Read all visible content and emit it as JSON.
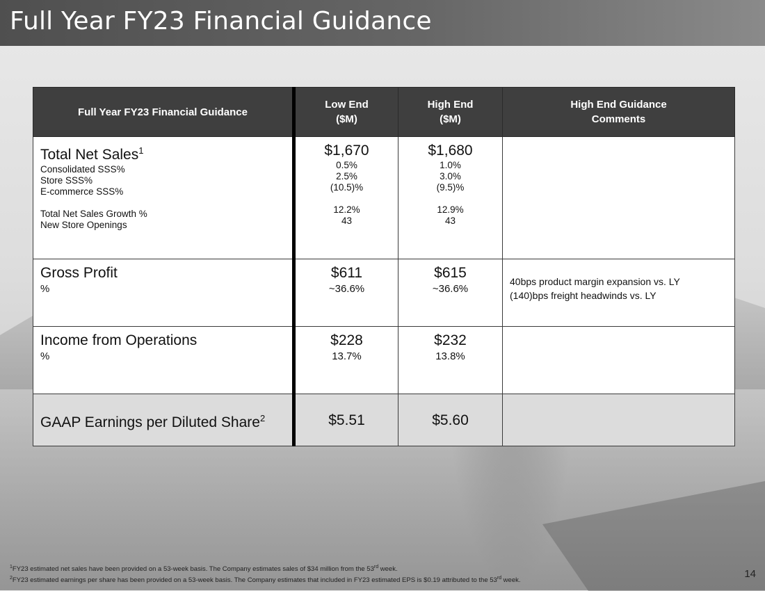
{
  "slide": {
    "title": "Full Year FY23 Financial Guidance",
    "page_number": "14"
  },
  "table": {
    "headers": {
      "label": "Full Year FY23 Financial Guidance",
      "low_line1": "Low End",
      "low_line2": "($M)",
      "high_line1": "High End",
      "high_line2": "($M)",
      "comment_line1": "High End Guidance",
      "comment_line2": "Comments"
    },
    "sales": {
      "title": "Total Net Sales",
      "title_sup": "1",
      "low": "$1,670",
      "high": "$1,680",
      "sub": [
        {
          "label": "Consolidated SSS%",
          "low": "0.5%",
          "high": "1.0%"
        },
        {
          "label": "Store SSS%",
          "low": "2.5%",
          "high": "3.0%"
        },
        {
          "label": "E-commerce SSS%",
          "low": "(10.5)%",
          "high": "(9.5)%"
        },
        {
          "label": "Total Net Sales Growth %",
          "low": "12.2%",
          "high": "12.9%"
        },
        {
          "label": "New Store Openings",
          "low": "43",
          "high": "43"
        }
      ]
    },
    "gross_profit": {
      "title": "Gross Profit",
      "sub_label": "%",
      "low": "$611",
      "high": "$615",
      "low_pct": "~36.6%",
      "high_pct": "~36.6%",
      "comment_line1": "40bps product margin expansion vs. LY",
      "comment_line2": "(140)bps freight headwinds vs. LY"
    },
    "income_ops": {
      "title": "Income from Operations",
      "sub_label": "%",
      "low": "$228",
      "high": "$232",
      "low_pct": "13.7%",
      "high_pct": "13.8%"
    },
    "eps": {
      "title": "GAAP Earnings per Diluted Share",
      "title_sup": "2",
      "low": "$5.51",
      "high": "$5.60"
    }
  },
  "footnotes": {
    "f1_mark": "1",
    "f1_a": "FY23 estimated net sales have been provided on a 53-week basis. The Company estimates sales of $34 million from the 53",
    "f1_sup": "rd",
    "f1_b": " week.",
    "f2_mark": "2",
    "f2_a": "FY23 estimated earnings per share has been provided on a 53-week basis. The Company estimates that included in FY23 estimated EPS is $0.19 attributed to the 53",
    "f2_sup": "rd",
    "f2_b": " week."
  }
}
